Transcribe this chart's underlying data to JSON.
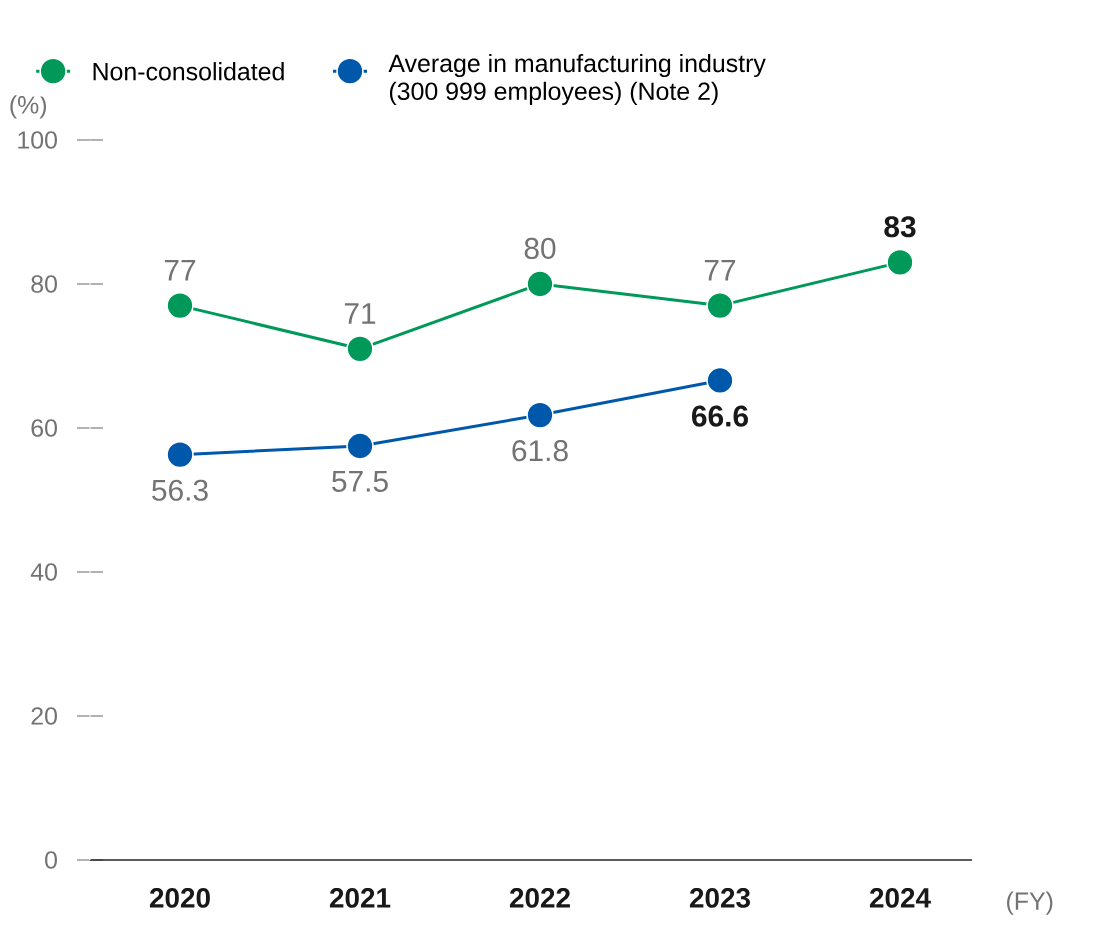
{
  "chart_data": {
    "type": "line",
    "categories": [
      "2020",
      "2021",
      "2022",
      "2023",
      "2024"
    ],
    "series": [
      {
        "name": "Non-consolidated",
        "color": "#00995a",
        "values": [
          77,
          71,
          80,
          77,
          83
        ]
      },
      {
        "name": "Average in manufacturing industry (300 999 employees) (Note 2)",
        "color": "#0058ab",
        "values": [
          56.3,
          57.5,
          61.8,
          66.6,
          null
        ]
      }
    ],
    "ylabel": "(%)",
    "xlabel": "(FY)",
    "ylim": [
      0,
      100
    ],
    "yticks": [
      0,
      20,
      40,
      60,
      80,
      100
    ],
    "data_labels": true,
    "marker": "circle",
    "line_style": "solid",
    "legend": "top",
    "grid": false
  }
}
